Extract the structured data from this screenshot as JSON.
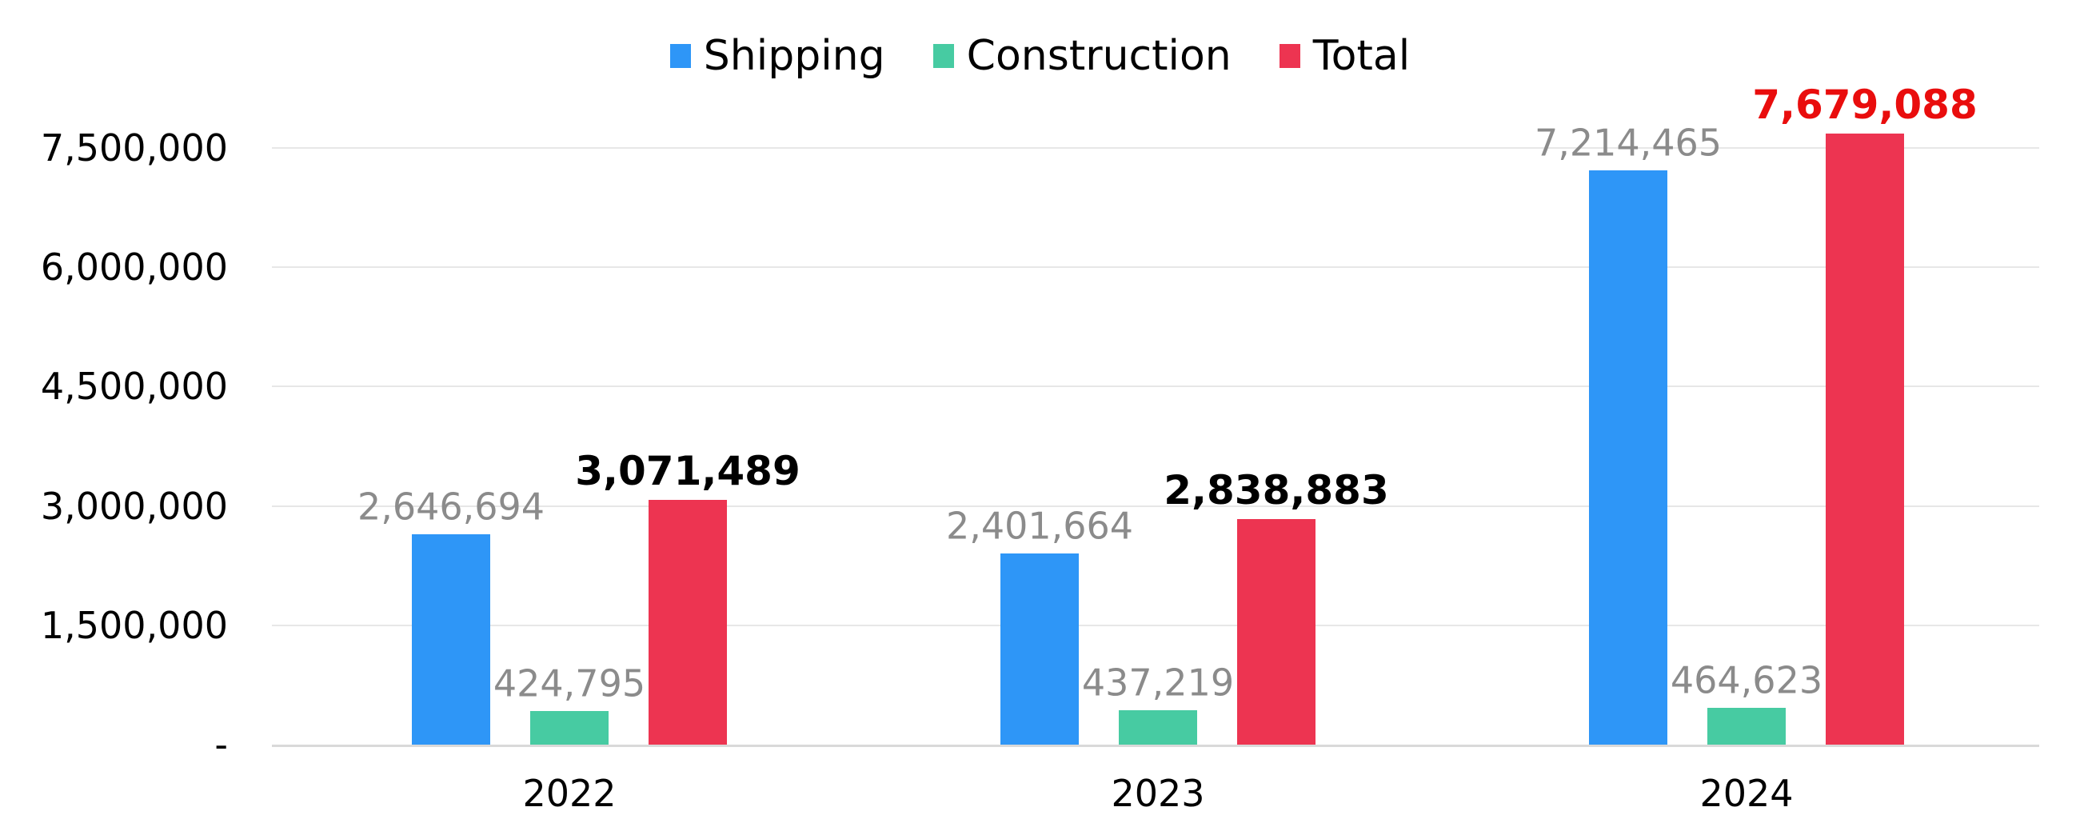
{
  "chart_data": {
    "type": "bar",
    "title": "",
    "categories": [
      "2022",
      "2023",
      "2024"
    ],
    "series": [
      {
        "name": "Shipping",
        "color": "#2e96f7",
        "values": [
          2646694,
          2401664,
          7214465
        ],
        "data_labels": [
          "2,646,694",
          "2,401,664",
          "7,214,465"
        ],
        "label_colors": [
          "#8b8b8b",
          "#8b8b8b",
          "#8b8b8b"
        ],
        "label_bold": false
      },
      {
        "name": "Construction",
        "color": "#47cba2",
        "values": [
          424795,
          437219,
          464623
        ],
        "data_labels": [
          "424,795",
          "437,219",
          "464,623"
        ],
        "label_colors": [
          "#8b8b8b",
          "#8b8b8b",
          "#8b8b8b"
        ],
        "label_bold": false
      },
      {
        "name": "Total",
        "color": "#ed3451",
        "values": [
          3071489,
          2838883,
          7679088
        ],
        "data_labels": [
          "3,071,489",
          "2,838,883",
          "7,679,088"
        ],
        "label_colors": [
          "#000000",
          "#000000",
          "#e90d0d"
        ],
        "label_bold": true
      }
    ],
    "y_axis": {
      "min": 0,
      "max": 7500000,
      "tick_interval": 1500000,
      "tick_labels_bottom_to_top": [
        "-",
        "1,500,000",
        "3,000,000",
        "4,500,000",
        "6,000,000",
        "7,500,000"
      ],
      "gridlines": true
    },
    "legend": {
      "position": "top-center",
      "entries": [
        {
          "label": "Shipping",
          "color": "#2e96f7"
        },
        {
          "label": "Construction",
          "color": "#47cba2"
        },
        {
          "label": "Total",
          "color": "#ed3451"
        }
      ]
    },
    "gridline_color": "#e7e7e7",
    "axis_color": "#d9d9d9",
    "text_color": "#000000"
  }
}
